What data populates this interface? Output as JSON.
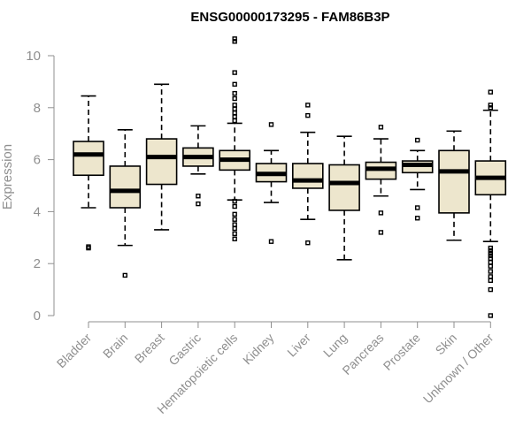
{
  "chart_data": {
    "type": "box",
    "title": "ENSG00000173295 - FAM86B3P",
    "ylabel": "Expression",
    "xlabel": "",
    "ylim": [
      0,
      10
    ],
    "yticks": [
      0,
      2,
      4,
      6,
      8,
      10
    ],
    "grid": false,
    "legend": "none",
    "box_fill": "#ede6cd",
    "axis_color": "#8f8f8f",
    "categories": [
      "Bladder",
      "Brain",
      "Breast",
      "Gastric",
      "Hematopoietic cells",
      "Kidney",
      "Liver",
      "Lung",
      "Pancreas",
      "Prostate",
      "Skin",
      "Unknown / Other"
    ],
    "boxes": [
      {
        "name": "Bladder",
        "whisker_low": 4.15,
        "q1": 5.4,
        "median": 6.2,
        "q3": 6.7,
        "whisker_high": 8.45,
        "outliers": [
          2.6,
          2.65
        ]
      },
      {
        "name": "Brain",
        "whisker_low": 2.7,
        "q1": 4.15,
        "median": 4.8,
        "q3": 5.75,
        "whisker_high": 7.15,
        "outliers": [
          1.55
        ]
      },
      {
        "name": "Breast",
        "whisker_low": 3.3,
        "q1": 5.05,
        "median": 6.1,
        "q3": 6.8,
        "whisker_high": 8.9,
        "outliers": []
      },
      {
        "name": "Gastric",
        "whisker_low": 5.45,
        "q1": 5.75,
        "median": 6.1,
        "q3": 6.45,
        "whisker_high": 7.3,
        "outliers": [
          4.3,
          4.6
        ]
      },
      {
        "name": "Hematopoietic cells",
        "whisker_low": 4.45,
        "q1": 5.6,
        "median": 6.0,
        "q3": 6.35,
        "whisker_high": 7.4,
        "outliers": [
          10.65,
          10.55,
          9.35,
          8.9,
          8.55,
          8.35,
          8.1,
          7.95,
          7.8,
          7.65,
          7.5,
          4.4,
          4.2,
          3.9,
          3.7,
          3.5,
          3.35,
          3.15,
          2.95
        ]
      },
      {
        "name": "Kidney",
        "whisker_low": 4.35,
        "q1": 5.15,
        "median": 5.45,
        "q3": 5.85,
        "whisker_high": 6.35,
        "outliers": [
          7.35,
          2.85
        ]
      },
      {
        "name": "Liver",
        "whisker_low": 3.7,
        "q1": 4.9,
        "median": 5.2,
        "q3": 5.85,
        "whisker_high": 7.05,
        "outliers": [
          8.1,
          7.7,
          2.8
        ]
      },
      {
        "name": "Lung",
        "whisker_low": 2.15,
        "q1": 4.05,
        "median": 5.1,
        "q3": 5.8,
        "whisker_high": 6.9,
        "outliers": []
      },
      {
        "name": "Pancreas",
        "whisker_low": 4.6,
        "q1": 5.25,
        "median": 5.65,
        "q3": 5.9,
        "whisker_high": 6.8,
        "outliers": [
          7.25,
          3.95,
          3.2
        ]
      },
      {
        "name": "Prostate",
        "whisker_low": 4.85,
        "q1": 5.5,
        "median": 5.8,
        "q3": 5.95,
        "whisker_high": 6.35,
        "outliers": [
          6.75,
          4.15,
          3.75
        ]
      },
      {
        "name": "Skin",
        "whisker_low": 2.9,
        "q1": 3.95,
        "median": 5.55,
        "q3": 6.35,
        "whisker_high": 7.1,
        "outliers": []
      },
      {
        "name": "Unknown / Other",
        "whisker_low": 2.85,
        "q1": 4.65,
        "median": 5.3,
        "q3": 5.95,
        "whisker_high": 7.9,
        "outliers": [
          8.6,
          8.1,
          8.0,
          2.6,
          2.5,
          2.4,
          2.3,
          2.2,
          2.05,
          1.9,
          1.7,
          1.5,
          1.35,
          1.0,
          0.0
        ]
      }
    ]
  }
}
